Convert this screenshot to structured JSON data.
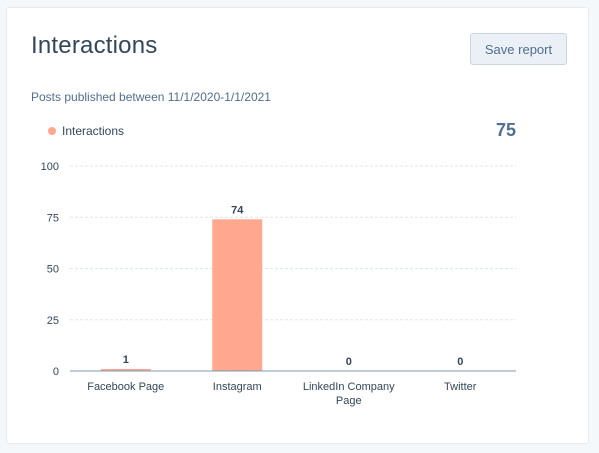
{
  "card": {
    "title": "Interactions",
    "save_label": "Save report",
    "subtitle": "Posts published between 11/1/2020-1/1/2021",
    "total": "75"
  },
  "colors": {
    "bar": "#ffa78f",
    "grid": "#e1e6eb",
    "axis": "#7c98b6"
  },
  "chart_data": {
    "type": "bar",
    "title": "",
    "xlabel": "",
    "ylabel": "",
    "categories": [
      "Facebook Page",
      "Instagram",
      "LinkedIn Company Page",
      "Twitter"
    ],
    "category_lines": [
      [
        "Facebook Page"
      ],
      [
        "Instagram"
      ],
      [
        "LinkedIn Company",
        "Page"
      ],
      [
        "Twitter"
      ]
    ],
    "series": [
      {
        "name": "Interactions",
        "values": [
          1,
          74,
          0,
          0
        ]
      }
    ],
    "ylim": [
      0,
      100
    ],
    "yticks": [
      0,
      25,
      50,
      75,
      100
    ],
    "grid": true,
    "legend": "top-left",
    "data_labels": true
  }
}
